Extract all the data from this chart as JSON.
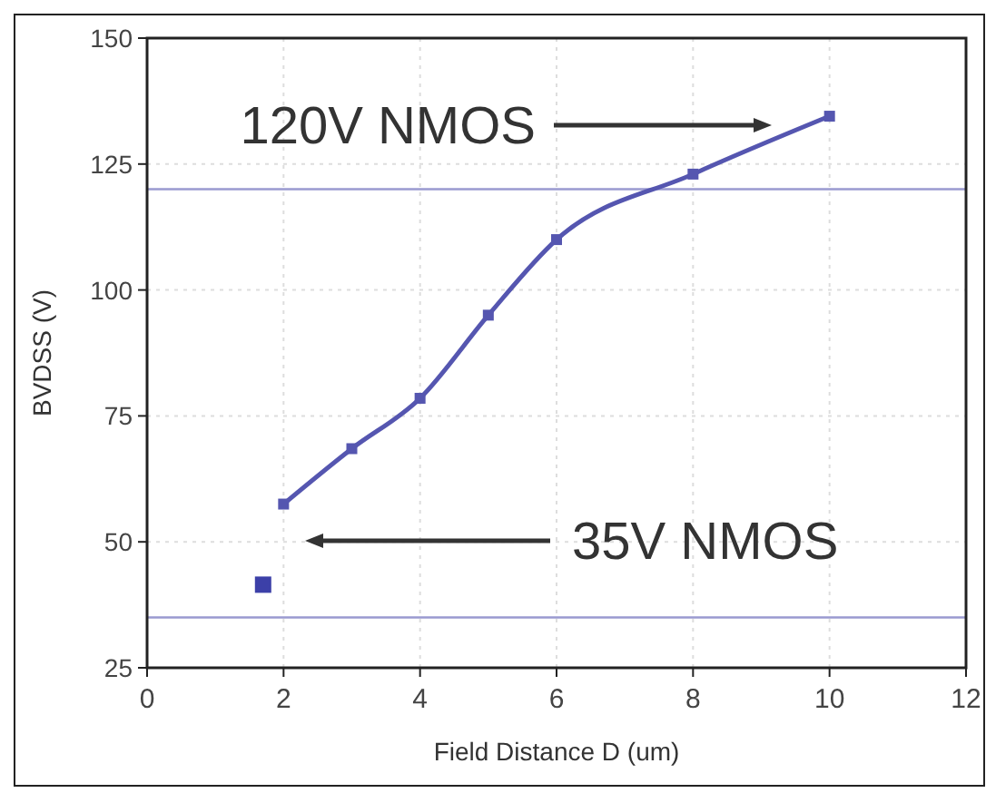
{
  "chart_data": {
    "type": "line",
    "xlabel": "Field Distance D (um)",
    "ylabel": "BVDSS (V)",
    "xlim": [
      0,
      12
    ],
    "xticks": [
      0,
      2,
      4,
      6,
      8,
      10,
      12
    ],
    "ylim": [
      25,
      150
    ],
    "yticks": [
      25,
      50,
      75,
      100,
      125,
      150
    ],
    "grid": true,
    "marker": "square",
    "line_style": "solid",
    "series": [
      {
        "color": "#5556b0",
        "x": [
          2,
          3,
          4,
          5,
          6,
          8,
          10
        ],
        "values": [
          57.5,
          68.5,
          78.5,
          95,
          110,
          123,
          134.5
        ]
      },
      {
        "type": "scatter",
        "color": "#3c40a8",
        "x": [
          1.7
        ],
        "values": [
          41.5
        ]
      }
    ],
    "ref_lines": [
      {
        "axis": "y",
        "value": 120,
        "color": "#9a9ad0"
      },
      {
        "axis": "y",
        "value": 35,
        "color": "#9a9ad0"
      }
    ],
    "annotations": [
      "120V NMOS",
      "35V NMOS"
    ]
  }
}
